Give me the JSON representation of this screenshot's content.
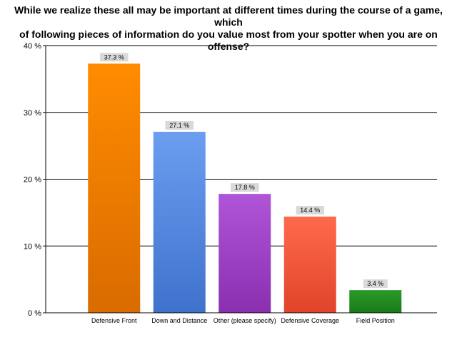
{
  "chart_data": {
    "type": "bar",
    "title_lines": [
      "While we realize these all may be important at different times during the course of a game, which",
      "of following pieces of information do you value most from your spotter when you are on offense?"
    ],
    "categories": [
      "Defensive Front",
      "Down and Distance",
      "Other (please specify)",
      "Defensive Coverage",
      "Field Position"
    ],
    "values": [
      37.3,
      27.1,
      17.8,
      14.4,
      3.4
    ],
    "value_labels": [
      "37.3 %",
      "27.1 %",
      "17.8 %",
      "14.4 %",
      "3.4 %"
    ],
    "colors": [
      [
        "#ff8c00",
        "#d96b00"
      ],
      [
        "#6b9ef0",
        "#3f72cc"
      ],
      [
        "#b055d8",
        "#8a2fb0"
      ],
      [
        "#ff6a4c",
        "#e0442a"
      ],
      [
        "#2a9a2a",
        "#1a7a1a"
      ]
    ],
    "ylim": [
      0,
      40
    ],
    "yticks": [
      0,
      10,
      20,
      30,
      40
    ],
    "ytick_labels": [
      "0 %",
      "10 %",
      "20 %",
      "30 %",
      "40 %"
    ],
    "xlabel": "",
    "ylabel": "",
    "grid": true,
    "legend": "none"
  }
}
